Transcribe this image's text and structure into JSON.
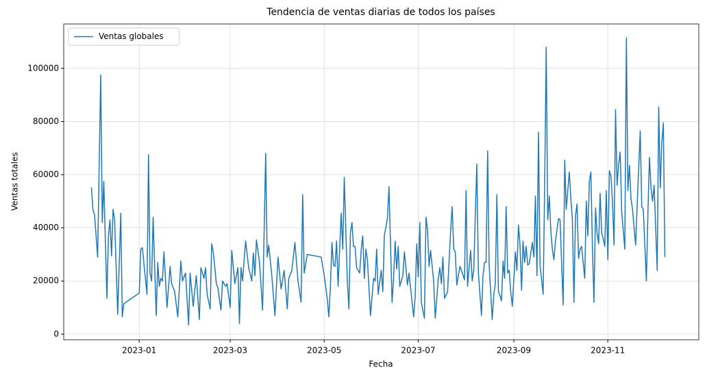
{
  "chart_data": {
    "type": "line",
    "title": "Tendencia de ventas diarias de todos los países",
    "xlabel": "Fecha",
    "ylabel": "Ventas totales",
    "legend": "upper left",
    "grid": true,
    "xlim": [
      "2022-11-13",
      "2023-12-30"
    ],
    "xticks": [
      "2023-01",
      "2023-03",
      "2023-05",
      "2023-07",
      "2023-09",
      "2023-11"
    ],
    "ylim": [
      -2100,
      116700
    ],
    "yticks": [
      0,
      20000,
      40000,
      60000,
      80000,
      100000
    ],
    "x": [
      "2022-12-01",
      "2022-12-02",
      "2022-12-03",
      "2022-12-05",
      "2022-12-07",
      "2022-12-08",
      "2022-12-09",
      "2022-12-11",
      "2022-12-12",
      "2022-12-13",
      "2022-12-14",
      "2022-12-15",
      "2022-12-16",
      "2022-12-18",
      "2022-12-20",
      "2022-12-21",
      "2022-12-22",
      "2023-01-01",
      "2023-01-02",
      "2023-01-03",
      "2023-01-06",
      "2023-01-07",
      "2023-01-08",
      "2023-01-09",
      "2023-01-10",
      "2023-01-12",
      "2023-01-13",
      "2023-01-14",
      "2023-01-15",
      "2023-01-16",
      "2023-01-17",
      "2023-01-19",
      "2023-01-21",
      "2023-01-22",
      "2023-01-24",
      "2023-01-26",
      "2023-01-28",
      "2023-01-29",
      "2023-01-31",
      "2023-02-02",
      "2023-02-03",
      "2023-02-05",
      "2023-02-07",
      "2023-02-09",
      "2023-02-10",
      "2023-02-12",
      "2023-02-13",
      "2023-02-14",
      "2023-02-16",
      "2023-02-17",
      "2023-02-18",
      "2023-02-20",
      "2023-02-21",
      "2023-02-23",
      "2023-02-24",
      "2023-02-26",
      "2023-02-27",
      "2023-03-01",
      "2023-03-02",
      "2023-03-04",
      "2023-03-06",
      "2023-03-07",
      "2023-03-08",
      "2023-03-09",
      "2023-03-11",
      "2023-03-13",
      "2023-03-15",
      "2023-03-16",
      "2023-03-17",
      "2023-03-18",
      "2023-03-20",
      "2023-03-22",
      "2023-03-24",
      "2023-03-25",
      "2023-03-26",
      "2023-03-28",
      "2023-03-30",
      "2023-04-01",
      "2023-04-03",
      "2023-04-05",
      "2023-04-07",
      "2023-04-08",
      "2023-04-10",
      "2023-04-12",
      "2023-04-14",
      "2023-04-16",
      "2023-04-17",
      "2023-04-18",
      "2023-04-20",
      "2023-04-29",
      "2023-05-01",
      "2023-05-03",
      "2023-05-04",
      "2023-05-05",
      "2023-05-06",
      "2023-05-07",
      "2023-05-08",
      "2023-05-09",
      "2023-05-10",
      "2023-05-12",
      "2023-05-13",
      "2023-05-14",
      "2023-05-16",
      "2023-05-17",
      "2023-05-18",
      "2023-05-19",
      "2023-05-20",
      "2023-05-21",
      "2023-05-22",
      "2023-05-24",
      "2023-05-25",
      "2023-05-26",
      "2023-05-27",
      "2023-05-28",
      "2023-05-29",
      "2023-05-31",
      "2023-06-02",
      "2023-06-03",
      "2023-06-04",
      "2023-06-05",
      "2023-06-07",
      "2023-06-08",
      "2023-06-09",
      "2023-06-11",
      "2023-06-12",
      "2023-06-14",
      "2023-06-15",
      "2023-06-16",
      "2023-06-17",
      "2023-06-18",
      "2023-06-19",
      "2023-06-21",
      "2023-06-22",
      "2023-06-24",
      "2023-06-25",
      "2023-06-28",
      "2023-06-29",
      "2023-06-30",
      "2023-07-01",
      "2023-07-02",
      "2023-07-03",
      "2023-07-05",
      "2023-07-06",
      "2023-07-07",
      "2023-07-08",
      "2023-07-09",
      "2023-07-11",
      "2023-07-12",
      "2023-07-14",
      "2023-07-15",
      "2023-07-16",
      "2023-07-17",
      "2023-07-18",
      "2023-07-20",
      "2023-07-22",
      "2023-07-23",
      "2023-07-24",
      "2023-07-25",
      "2023-07-26",
      "2023-07-28",
      "2023-07-29",
      "2023-07-31",
      "2023-08-01",
      "2023-08-02",
      "2023-08-03",
      "2023-08-04",
      "2023-08-05",
      "2023-08-06",
      "2023-08-08",
      "2023-08-09",
      "2023-08-11",
      "2023-08-12",
      "2023-08-13",
      "2023-08-14",
      "2023-08-15",
      "2023-08-16",
      "2023-08-18",
      "2023-08-19",
      "2023-08-20",
      "2023-08-21",
      "2023-08-22",
      "2023-08-23",
      "2023-08-24",
      "2023-08-25",
      "2023-08-26",
      "2023-08-27",
      "2023-08-28",
      "2023-08-29",
      "2023-08-30",
      "2023-08-31",
      "2023-09-02",
      "2023-09-03",
      "2023-09-04",
      "2023-09-05",
      "2023-09-06",
      "2023-09-07",
      "2023-09-08",
      "2023-09-09",
      "2023-09-10",
      "2023-09-11",
      "2023-09-13",
      "2023-09-14",
      "2023-09-15",
      "2023-09-16",
      "2023-09-17",
      "2023-09-18",
      "2023-09-20",
      "2023-09-21",
      "2023-09-22",
      "2023-09-23",
      "2023-09-24",
      "2023-09-25",
      "2023-09-26",
      "2023-09-27",
      "2023-09-28",
      "2023-09-30",
      "2023-10-01",
      "2023-10-03",
      "2023-10-04",
      "2023-10-05",
      "2023-10-06",
      "2023-10-07",
      "2023-10-08",
      "2023-10-09",
      "2023-10-10",
      "2023-10-11",
      "2023-10-12",
      "2023-10-13",
      "2023-10-14",
      "2023-10-15",
      "2023-10-17",
      "2023-10-18",
      "2023-10-19",
      "2023-10-20",
      "2023-10-21",
      "2023-10-22",
      "2023-10-23",
      "2023-10-24",
      "2023-10-25",
      "2023-10-26",
      "2023-10-27",
      "2023-10-28",
      "2023-10-29",
      "2023-10-30",
      "2023-10-31",
      "2023-11-01",
      "2023-11-02",
      "2023-11-03",
      "2023-11-04",
      "2023-11-05",
      "2023-11-06",
      "2023-11-07",
      "2023-11-08",
      "2023-11-09",
      "2023-11-10",
      "2023-11-12",
      "2023-11-13",
      "2023-11-14",
      "2023-11-15",
      "2023-11-16",
      "2023-11-17",
      "2023-11-19",
      "2023-11-20",
      "2023-11-22",
      "2023-11-23",
      "2023-11-24",
      "2023-11-26",
      "2023-11-27",
      "2023-11-28",
      "2023-11-29",
      "2023-11-30",
      "2023-12-01",
      "2023-12-03",
      "2023-12-04",
      "2023-12-05",
      "2023-12-06",
      "2023-12-07",
      "2023-12-08"
    ],
    "series": [
      {
        "name": "Ventas globales",
        "color": "#1f77b4",
        "values": [
          55200,
          46500,
          45000,
          29000,
          97500,
          42000,
          57500,
          13500,
          37000,
          43000,
          29500,
          47000,
          43000,
          7500,
          45500,
          6500,
          11500,
          15500,
          32000,
          32500,
          15000,
          67500,
          23000,
          20000,
          44000,
          7000,
          27000,
          18000,
          21000,
          20000,
          31000,
          10000,
          25500,
          19000,
          16000,
          6500,
          27500,
          20000,
          23000,
          3500,
          23000,
          10500,
          22000,
          5500,
          25000,
          21000,
          25000,
          15000,
          9500,
          34000,
          31000,
          19000,
          17500,
          9000,
          20000,
          18000,
          19000,
          10000,
          31500,
          19000,
          25000,
          4000,
          25000,
          20000,
          35000,
          25000,
          20000,
          30500,
          22000,
          35500,
          27000,
          9000,
          68000,
          29000,
          33500,
          22000,
          7000,
          29000,
          17000,
          24000,
          9500,
          21000,
          24000,
          34500,
          20000,
          12000,
          52500,
          23000,
          30000,
          29000,
          22000,
          13000,
          6500,
          18000,
          34500,
          26000,
          25500,
          35000,
          18000,
          45500,
          32000,
          59000,
          20000,
          9500,
          38000,
          42000,
          33000,
          33000,
          25000,
          23000,
          32000,
          37000,
          21000,
          32000,
          28000,
          7000,
          21000,
          20000,
          32000,
          15000,
          24000,
          16000,
          37000,
          43500,
          55500,
          12000,
          21000,
          35000,
          24500,
          33000,
          18000,
          22000,
          31000,
          18500,
          23000,
          6500,
          14000,
          34000,
          21500,
          42000,
          12000,
          6000,
          44000,
          39500,
          25500,
          31500,
          20000,
          6000,
          21000,
          25000,
          19000,
          29000,
          13500,
          16000,
          39000,
          48000,
          32000,
          31000,
          18500,
          25500,
          24000,
          20500,
          54000,
          18000,
          25000,
          31500,
          20000,
          24000,
          64000,
          23000,
          7000,
          22000,
          27000,
          27000,
          69000,
          26000,
          5500,
          15000,
          19000,
          52500,
          16000,
          14500,
          12500,
          27500,
          21000,
          48000,
          23000,
          24000,
          16000,
          10500,
          31000,
          24000,
          41000,
          34000,
          16500,
          35000,
          27000,
          33000,
          26000,
          26500,
          34500,
          29000,
          52000,
          22000,
          76000,
          26000,
          15000,
          55000,
          108000,
          43000,
          52000,
          39000,
          32000,
          28000,
          35000,
          43500,
          43000,
          11000,
          65500,
          47000,
          54000,
          61000,
          51000,
          43000,
          12000,
          44500,
          49000,
          28500,
          32000,
          33000,
          21000,
          50000,
          37000,
          57500,
          61000,
          32000,
          12000,
          47500,
          38000,
          34000,
          53000,
          38000,
          36000,
          33000,
          54000,
          28000,
          61500,
          59500,
          50000,
          33500,
          84500,
          56000,
          64000,
          68500,
          46000,
          32000,
          111500,
          54000,
          63500,
          51000,
          47000,
          33500,
          48000,
          76500,
          48000,
          47000,
          20000,
          46000,
          66500,
          55000,
          50000,
          56000,
          24000,
          85500,
          55000,
          72000,
          79500,
          29000
        ]
      }
    ]
  }
}
